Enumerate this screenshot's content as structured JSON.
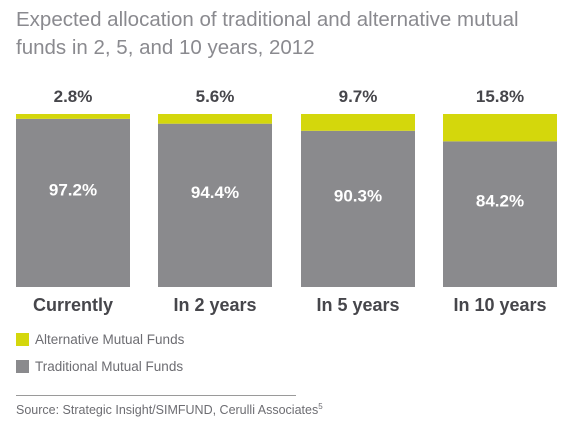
{
  "title": "Expected allocation of traditional and alternative mutual funds in 2, 5, and 10 years, 2012",
  "colors": {
    "alternative": "#d4d70c",
    "traditional": "#8a8a8d",
    "text_dark": "#46464b"
  },
  "chart_data": {
    "type": "bar",
    "stacked": true,
    "categories": [
      "Currently",
      "In 2 years",
      "In 5 years",
      "In 10 years"
    ],
    "series": [
      {
        "name": "Traditional Mutual Funds",
        "values": [
          97.2,
          94.4,
          90.3,
          84.2
        ],
        "labels": [
          "97.2%",
          "94.4%",
          "90.3%",
          "84.2%"
        ]
      },
      {
        "name": "Alternative Mutual Funds",
        "values": [
          2.8,
          5.6,
          9.7,
          15.8
        ],
        "labels": [
          "2.8%",
          "5.6%",
          "9.7%",
          "15.8%"
        ]
      }
    ],
    "ylim": [
      0,
      100
    ],
    "legend": "bottom-left",
    "grid": false
  },
  "source": {
    "text": "Source: Strategic Insight/SIMFUND, Cerulli Associates",
    "footnote": "5"
  }
}
